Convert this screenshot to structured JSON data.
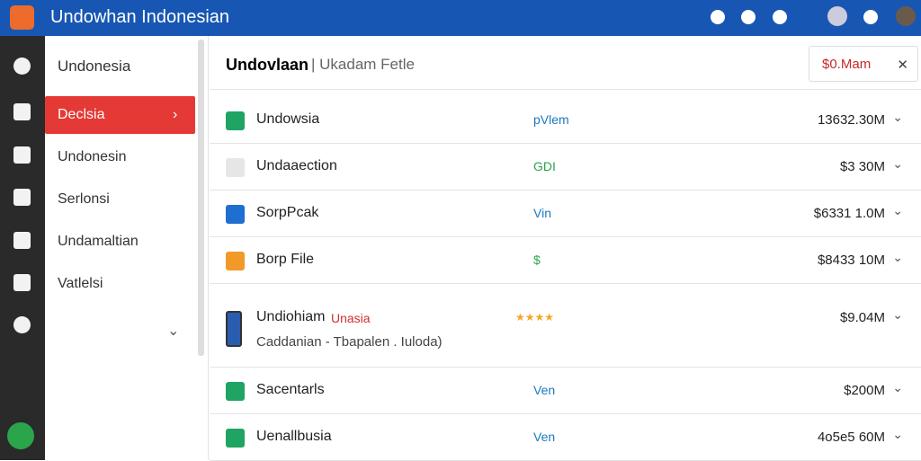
{
  "header": {
    "title": "Undowhan Indonesian"
  },
  "sidebar": {
    "title": "Undonesia",
    "items": [
      "Declsia",
      "Undonesin",
      "Serlonsi",
      "Undamaltian",
      "Vatlelsi"
    ]
  },
  "main": {
    "title": "Undovlaan",
    "subtitle": "Ukadam Fetle",
    "button": "$0.Mam",
    "rows": [
      {
        "name": "Undowsia",
        "tag": "pVlem",
        "amount": "13632.30M"
      },
      {
        "name": "Undaaection",
        "tag": "GDI",
        "amount": "$3 30M"
      },
      {
        "name": "SorpPcak",
        "tag": "Vin",
        "amount": "$6331 1.0M"
      },
      {
        "name": "Borp File",
        "tag": "$",
        "amount": "$8433 10M"
      },
      {
        "name": "Undiohiam",
        "badge": "Unasia",
        "rating": "★★★★",
        "detail": "Caddanian - Tbapalen . Iuloda)",
        "amount": "$9.04M"
      },
      {
        "name": "Sacentarls",
        "tag": "Ven",
        "amount": "$200M"
      },
      {
        "name": "Uenallbusia",
        "tag": "Ven",
        "amount": "4o5e5 60M"
      }
    ]
  }
}
